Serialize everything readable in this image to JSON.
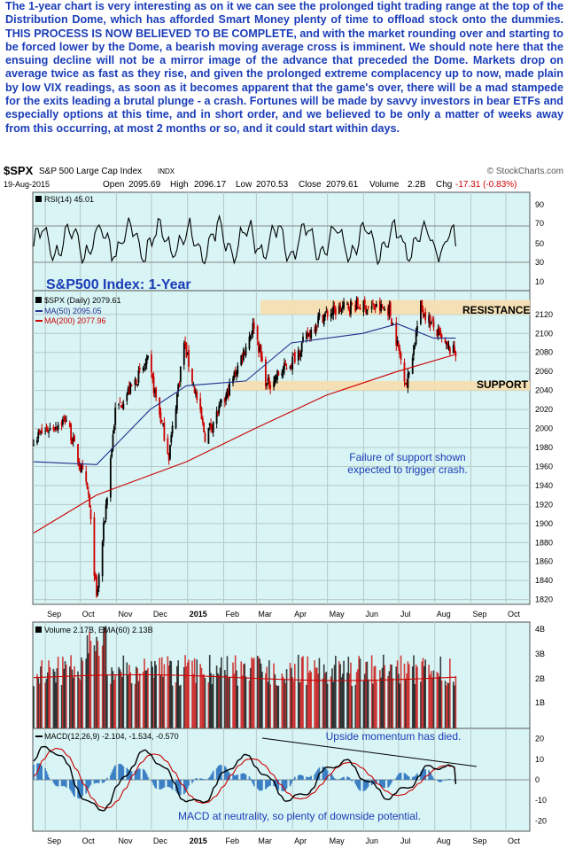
{
  "commentary": "The 1-year chart is very interesting as on it we can see the prolonged tight trading range at the top of the Distribution Dome, which has afforded Smart Money plenty of time to offload stock onto the dummies. THIS PROCESS IS NOW BELIEVED TO BE COMPLETE, and with the market rounding over and starting to be forced lower by the Dome, a bearish moving average cross is imminent. We should note here that the ensuing decline will not be a mirror image of the advance that preceded the Dome. Markets drop on average twice as fast as they rise, and given the prolonged extreme complacency up to now, made plain by low VIX readings, as soon as it becomes apparent that the game's over, there will be a mad stampede for the exits leading a brutal plunge - a crash. Fortunes will be made by savvy investors in bear ETFs and especially options at this time, and in short order, and we believed to be only a matter of weeks away from this occurring, at most 2 months or so, and it could start within days.",
  "header": {
    "symbol": "$SPX",
    "name": "S&P 500 Large Cap Index",
    "exchange": "INDX",
    "brand": "© StockCharts.com",
    "date": "19-Aug-2015",
    "open_label": "Open",
    "open": "2095.69",
    "high_label": "High",
    "high": "2096.17",
    "low_label": "Low",
    "low": "2070.53",
    "close_label": "Close",
    "close": "2079.61",
    "volume_label": "Volume",
    "volume": "2.2B",
    "chg_label": "Chg",
    "chg": "-17.31 (-0.83%)"
  },
  "colors": {
    "panel_bg": "#d8f4f4",
    "band": "#f5deb0",
    "text_blue": "#1a3db8",
    "candle_up": "#000000",
    "candle_down": "#cc0000",
    "ma50": "#1f2f8f",
    "ma200": "#cc0000",
    "macd_line": "#000000",
    "signal_line": "#cc0000",
    "histogram": "#3b7fc4"
  },
  "rsi_panel": {
    "label": "RSI(14) 45.01",
    "ticks": [
      "90",
      "70",
      "50",
      "30",
      "10"
    ]
  },
  "price_panel": {
    "title": "S&P500 Index: 1-Year",
    "legend": [
      "$SPX (Daily) 2079.61",
      "MA(50) 2095.05",
      "MA(200) 2077.96"
    ],
    "ticks": [
      "2120",
      "2100",
      "2080",
      "2060",
      "2040",
      "2020",
      "2000",
      "1980",
      "1960",
      "1940",
      "1920",
      "1900",
      "1880",
      "1860",
      "1840",
      "1820"
    ],
    "resistance_label": "RESISTANCE",
    "support_label": "SUPPORT",
    "note_line1": "Failure of support shown",
    "note_line2": "expected to trigger crash."
  },
  "volume_panel": {
    "label": "Volume 2.17B, EMA(60) 2.13B",
    "ticks": [
      "4B",
      "3B",
      "2B",
      "1B"
    ]
  },
  "macd_panel": {
    "label": "MACD(12,26,9) -2.104, -1.534, -0.570",
    "ticks": [
      "20",
      "10",
      "0",
      "-10",
      "-20"
    ],
    "note_top": "Upside momentum has died.",
    "note_bottom": "MACD at neutrality, so plenty of downside potential."
  },
  "months": [
    "Sep",
    "Oct",
    "Nov",
    "Dec",
    "2015",
    "Feb",
    "Mar",
    "Apr",
    "May",
    "Jun",
    "Jul",
    "Aug",
    "Sep",
    "Oct"
  ],
  "chart_data": {
    "type": "line",
    "title": "S&P500 Index: 1-Year",
    "x_unit": "month",
    "price_ylim": [
      1815,
      2145
    ],
    "resistance_zone": [
      2120,
      2135
    ],
    "support_zone": [
      2040,
      2050
    ],
    "series": [
      {
        "name": "$SPX (Daily)",
        "x": [
          "2014-08-22",
          "2014-09-19",
          "2014-10-08",
          "2014-10-15",
          "2014-10-31",
          "2014-11-28",
          "2014-12-16",
          "2014-12-29",
          "2015-01-16",
          "2015-02-02",
          "2015-02-27",
          "2015-03-10",
          "2015-03-31",
          "2015-04-24",
          "2015-05-21",
          "2015-06-23",
          "2015-07-08",
          "2015-07-20",
          "2015-08-11",
          "2015-08-19"
        ],
        "values": [
          1990,
          2010,
          1930,
          1820,
          2018,
          2070,
          1972,
          2090,
          1992,
          2030,
          2110,
          2045,
          2070,
          2117,
          2130,
          2125,
          2046,
          2128,
          2085,
          2080
        ]
      },
      {
        "name": "MA(50)",
        "x": [
          "2014-08-22",
          "2014-10-15",
          "2014-11-30",
          "2014-12-31",
          "2015-02-20",
          "2015-03-31",
          "2015-05-31",
          "2015-06-30",
          "2015-07-31",
          "2015-08-19"
        ],
        "values": [
          1965,
          1962,
          2020,
          2045,
          2050,
          2090,
          2100,
          2110,
          2095,
          2095
        ]
      },
      {
        "name": "MA(200)",
        "x": [
          "2014-08-22",
          "2014-10-15",
          "2014-12-31",
          "2015-02-28",
          "2015-04-30",
          "2015-06-30",
          "2015-08-19"
        ],
        "values": [
          1890,
          1930,
          1965,
          2000,
          2035,
          2060,
          2078
        ]
      }
    ],
    "rsi": {
      "name": "RSI(14)",
      "last": 45.01,
      "ylim": [
        0,
        100
      ],
      "ref_lines": [
        70,
        30
      ]
    },
    "volume": {
      "last": 2.17,
      "ema60": 2.13,
      "unit": "B"
    },
    "macd": {
      "params": "12,26,9",
      "macd": -2.104,
      "signal": -1.534,
      "histogram": -0.57,
      "ylim": [
        -25,
        25
      ]
    }
  }
}
